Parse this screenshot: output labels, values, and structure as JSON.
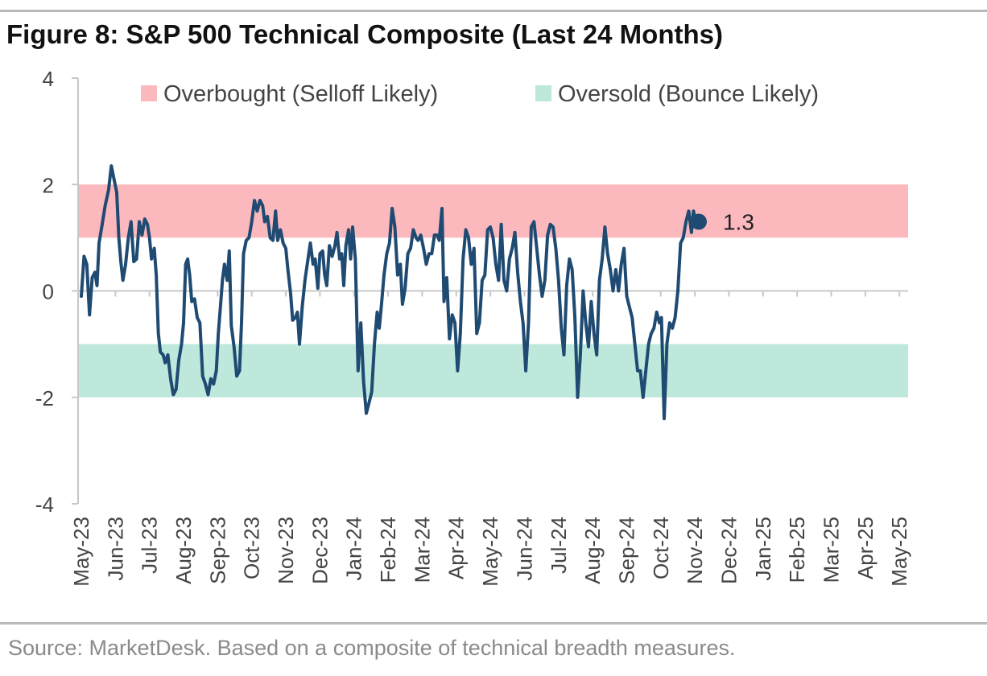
{
  "figure": {
    "title": "Figure 8: S&P 500 Technical Composite (Last 24 Months)",
    "source": "Source: MarketDesk. Based on a composite of technical breadth measures."
  },
  "colors": {
    "line": "#1f4a72",
    "overbought_band": "#fbb9be",
    "oversold_band": "#bde8db",
    "axis": "#c8c8c8"
  },
  "chart_data": {
    "type": "line",
    "title": "S&P 500 Technical Composite (Last 24 Months)",
    "ylim": [
      -4,
      4
    ],
    "yticks": [
      -4,
      -2,
      0,
      2,
      4
    ],
    "ytick_labels": [
      "-4",
      "-2",
      "0",
      "2",
      "4"
    ],
    "grid": false,
    "legend_position": "top",
    "x_categories": [
      "May-23",
      "Jun-23",
      "Jul-23",
      "Aug-23",
      "Sep-23",
      "Oct-23",
      "Nov-23",
      "Dec-23",
      "Jan-24",
      "Feb-24",
      "Mar-24",
      "Apr-24",
      "May-24",
      "Jun-24",
      "Jul-24",
      "Aug-24",
      "Sep-24",
      "Oct-24",
      "Nov-24",
      "Dec-24",
      "Jan-25",
      "Feb-25",
      "Mar-25",
      "Apr-25",
      "May-25"
    ],
    "bands": [
      {
        "name": "Overbought (Selloff Likely)",
        "range": [
          1,
          2
        ]
      },
      {
        "name": "Oversold (Bounce Likely)",
        "range": [
          -2,
          -1
        ]
      }
    ],
    "series": [
      {
        "values": [
          [
            0.0,
            -0.1
          ],
          [
            0.08,
            0.65
          ],
          [
            0.16,
            0.5
          ],
          [
            0.24,
            -0.45
          ],
          [
            0.32,
            0.25
          ],
          [
            0.4,
            0.35
          ],
          [
            0.46,
            0.1
          ],
          [
            0.52,
            0.9
          ],
          [
            0.6,
            1.2
          ],
          [
            0.7,
            1.6
          ],
          [
            0.8,
            1.9
          ],
          [
            0.88,
            2.35
          ],
          [
            0.96,
            2.1
          ],
          [
            1.04,
            1.85
          ],
          [
            1.1,
            1.0
          ],
          [
            1.16,
            0.55
          ],
          [
            1.22,
            0.2
          ],
          [
            1.3,
            0.5
          ],
          [
            1.38,
            1.0
          ],
          [
            1.46,
            1.3
          ],
          [
            1.54,
            0.55
          ],
          [
            1.62,
            0.6
          ],
          [
            1.7,
            1.3
          ],
          [
            1.78,
            1.05
          ],
          [
            1.86,
            1.35
          ],
          [
            1.94,
            1.25
          ],
          [
            2.0,
            1.0
          ],
          [
            2.06,
            0.6
          ],
          [
            2.14,
            0.8
          ],
          [
            2.2,
            0.3
          ],
          [
            2.26,
            -0.8
          ],
          [
            2.32,
            -1.15
          ],
          [
            2.4,
            -1.2
          ],
          [
            2.46,
            -1.35
          ],
          [
            2.54,
            -1.2
          ],
          [
            2.62,
            -1.65
          ],
          [
            2.7,
            -1.95
          ],
          [
            2.78,
            -1.85
          ],
          [
            2.86,
            -1.3
          ],
          [
            2.94,
            -1.0
          ],
          [
            3.0,
            -0.6
          ],
          [
            3.06,
            0.5
          ],
          [
            3.12,
            0.6
          ],
          [
            3.18,
            0.3
          ],
          [
            3.24,
            -0.2
          ],
          [
            3.32,
            -0.15
          ],
          [
            3.4,
            -0.5
          ],
          [
            3.48,
            -0.6
          ],
          [
            3.56,
            -1.6
          ],
          [
            3.64,
            -1.75
          ],
          [
            3.72,
            -1.95
          ],
          [
            3.8,
            -1.65
          ],
          [
            3.88,
            -1.75
          ],
          [
            3.96,
            -1.5
          ],
          [
            4.02,
            -0.8
          ],
          [
            4.08,
            -0.3
          ],
          [
            4.14,
            0.2
          ],
          [
            4.2,
            0.5
          ],
          [
            4.28,
            0.2
          ],
          [
            4.34,
            0.75
          ],
          [
            4.4,
            -0.65
          ],
          [
            4.48,
            -1.05
          ],
          [
            4.56,
            -1.6
          ],
          [
            4.64,
            -1.5
          ],
          [
            4.7,
            -0.6
          ],
          [
            4.76,
            0.7
          ],
          [
            4.84,
            0.95
          ],
          [
            4.92,
            1.0
          ],
          [
            5.0,
            1.3
          ],
          [
            5.08,
            1.7
          ],
          [
            5.16,
            1.5
          ],
          [
            5.24,
            1.7
          ],
          [
            5.32,
            1.6
          ],
          [
            5.38,
            1.3
          ],
          [
            5.46,
            1.4
          ],
          [
            5.54,
            1.0
          ],
          [
            5.62,
            0.95
          ],
          [
            5.7,
            1.5
          ],
          [
            5.76,
            0.95
          ],
          [
            5.84,
            1.15
          ],
          [
            5.92,
            0.9
          ],
          [
            6.0,
            0.8
          ],
          [
            6.06,
            0.4
          ],
          [
            6.14,
            -0.05
          ],
          [
            6.2,
            -0.55
          ],
          [
            6.28,
            -0.5
          ],
          [
            6.34,
            -0.4
          ],
          [
            6.4,
            -1.0
          ],
          [
            6.48,
            -0.3
          ],
          [
            6.56,
            0.2
          ],
          [
            6.64,
            0.55
          ],
          [
            6.72,
            0.9
          ],
          [
            6.8,
            0.5
          ],
          [
            6.86,
            0.6
          ],
          [
            6.94,
            0.05
          ],
          [
            7.0,
            0.7
          ],
          [
            7.08,
            0.75
          ],
          [
            7.14,
            0.3
          ],
          [
            7.2,
            0.1
          ],
          [
            7.28,
            0.85
          ],
          [
            7.36,
            0.65
          ],
          [
            7.44,
            0.85
          ],
          [
            7.5,
            1.1
          ],
          [
            7.58,
            0.6
          ],
          [
            7.64,
            0.7
          ],
          [
            7.7,
            0.1
          ],
          [
            7.76,
            0.85
          ],
          [
            7.84,
            1.15
          ],
          [
            7.9,
            0.6
          ],
          [
            7.96,
            1.2
          ],
          [
            8.04,
            0.6
          ],
          [
            8.12,
            -1.5
          ],
          [
            8.2,
            -0.6
          ],
          [
            8.28,
            -1.7
          ],
          [
            8.36,
            -2.3
          ],
          [
            8.44,
            -2.1
          ],
          [
            8.52,
            -1.9
          ],
          [
            8.6,
            -1.0
          ],
          [
            8.68,
            -0.4
          ],
          [
            8.74,
            -0.7
          ],
          [
            8.8,
            -0.3
          ],
          [
            8.88,
            0.3
          ],
          [
            8.96,
            0.7
          ],
          [
            9.04,
            0.9
          ],
          [
            9.12,
            1.55
          ],
          [
            9.2,
            1.2
          ],
          [
            9.28,
            0.3
          ],
          [
            9.36,
            0.5
          ],
          [
            9.42,
            -0.25
          ],
          [
            9.5,
            0.05
          ],
          [
            9.58,
            0.7
          ],
          [
            9.66,
            0.8
          ],
          [
            9.74,
            1.15
          ],
          [
            9.82,
            1.0
          ],
          [
            9.88,
            0.95
          ],
          [
            9.96,
            1.05
          ],
          [
            10.04,
            0.8
          ],
          [
            10.12,
            0.5
          ],
          [
            10.2,
            0.7
          ],
          [
            10.28,
            0.7
          ],
          [
            10.36,
            1.05
          ],
          [
            10.44,
            1.05
          ],
          [
            10.5,
            0.95
          ],
          [
            10.58,
            1.55
          ],
          [
            10.64,
            -0.2
          ],
          [
            10.72,
            0.25
          ],
          [
            10.8,
            -0.9
          ],
          [
            10.88,
            -0.45
          ],
          [
            10.96,
            -0.6
          ],
          [
            11.04,
            -1.5
          ],
          [
            11.12,
            -0.8
          ],
          [
            11.2,
            0.6
          ],
          [
            11.28,
            1.15
          ],
          [
            11.36,
            1.0
          ],
          [
            11.44,
            0.5
          ],
          [
            11.52,
            0.8
          ],
          [
            11.6,
            -0.8
          ],
          [
            11.68,
            -0.6
          ],
          [
            11.76,
            0.2
          ],
          [
            11.84,
            0.3
          ],
          [
            11.92,
            1.15
          ],
          [
            12.0,
            1.2
          ],
          [
            12.08,
            1.0
          ],
          [
            12.16,
            0.5
          ],
          [
            12.24,
            0.2
          ],
          [
            12.32,
            1.25
          ],
          [
            12.4,
            0.2
          ],
          [
            12.48,
            0.0
          ],
          [
            12.56,
            0.6
          ],
          [
            12.64,
            0.8
          ],
          [
            12.72,
            1.1
          ],
          [
            12.8,
            0.35
          ],
          [
            12.88,
            -0.2
          ],
          [
            12.96,
            -0.6
          ],
          [
            13.04,
            -1.5
          ],
          [
            13.12,
            -0.6
          ],
          [
            13.2,
            1.2
          ],
          [
            13.28,
            1.3
          ],
          [
            13.36,
            0.8
          ],
          [
            13.44,
            0.3
          ],
          [
            13.52,
            -0.1
          ],
          [
            13.6,
            0.2
          ],
          [
            13.68,
            1.05
          ],
          [
            13.76,
            1.25
          ],
          [
            13.84,
            1.2
          ],
          [
            13.92,
            0.8
          ],
          [
            14.0,
            0.2
          ],
          [
            14.08,
            -0.7
          ],
          [
            14.16,
            -1.2
          ],
          [
            14.24,
            0.1
          ],
          [
            14.32,
            0.6
          ],
          [
            14.4,
            0.4
          ],
          [
            14.48,
            -0.5
          ],
          [
            14.56,
            -2.0
          ],
          [
            14.64,
            -1.2
          ],
          [
            14.72,
            0.0
          ],
          [
            14.8,
            -0.6
          ],
          [
            14.88,
            -1.05
          ],
          [
            14.96,
            -0.2
          ],
          [
            15.04,
            -0.8
          ],
          [
            15.12,
            -1.2
          ],
          [
            15.2,
            0.2
          ],
          [
            15.28,
            0.6
          ],
          [
            15.36,
            1.2
          ],
          [
            15.44,
            0.7
          ],
          [
            15.52,
            0.4
          ],
          [
            15.6,
            0.0
          ],
          [
            15.68,
            0.4
          ],
          [
            15.76,
            0.0
          ],
          [
            15.84,
            0.5
          ],
          [
            15.92,
            0.8
          ],
          [
            16.0,
            -0.1
          ],
          [
            16.08,
            -0.3
          ],
          [
            16.16,
            -0.5
          ],
          [
            16.24,
            -1.0
          ],
          [
            16.32,
            -1.5
          ],
          [
            16.4,
            -1.5
          ],
          [
            16.48,
            -2.0
          ],
          [
            16.56,
            -1.5
          ],
          [
            16.64,
            -1.0
          ],
          [
            16.72,
            -0.8
          ],
          [
            16.8,
            -0.7
          ],
          [
            16.88,
            -0.4
          ],
          [
            16.96,
            -0.6
          ],
          [
            17.02,
            -0.5
          ],
          [
            17.1,
            -2.4
          ],
          [
            17.18,
            -1.0
          ],
          [
            17.26,
            -0.6
          ],
          [
            17.34,
            -0.7
          ],
          [
            17.42,
            -0.5
          ],
          [
            17.5,
            0.0
          ],
          [
            17.58,
            0.9
          ],
          [
            17.66,
            1.0
          ],
          [
            17.74,
            1.3
          ],
          [
            17.82,
            1.5
          ],
          [
            17.9,
            1.1
          ],
          [
            17.96,
            1.5
          ],
          [
            18.02,
            1.3
          ]
        ]
      }
    ],
    "end_value": 1.3,
    "end_label": "1.3"
  }
}
